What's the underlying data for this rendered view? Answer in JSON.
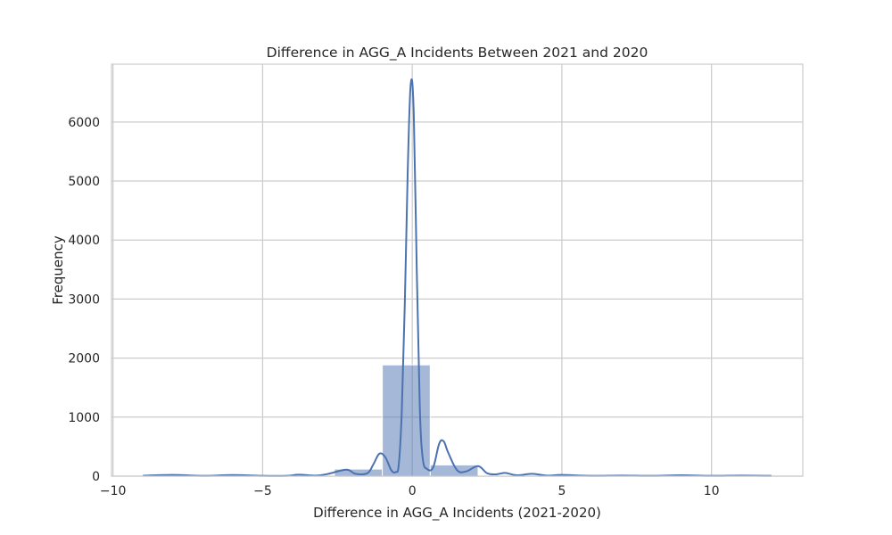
{
  "chart_data": {
    "type": "bar",
    "title": "Difference in AGG_A Incidents Between 2021 and 2020",
    "xlabel": "Difference in AGG_A Incidents (2021-2020)",
    "ylabel": "Frequency",
    "xlim": [
      -10.05,
      13.05
    ],
    "ylim": [
      0,
      6980
    ],
    "x_ticks": [
      -10,
      -5,
      0,
      5,
      10
    ],
    "x_tick_labels": [
      "−10",
      "−5",
      "0",
      "5",
      "10"
    ],
    "y_ticks": [
      0,
      1000,
      2000,
      3000,
      4000,
      5000,
      6000
    ],
    "y_tick_labels": [
      "0",
      "1000",
      "2000",
      "3000",
      "4000",
      "5000",
      "6000"
    ],
    "grid": true,
    "colors": {
      "bar_fill": "#4c72b0",
      "bar_opacity": 0.5,
      "kde_line": "#4c72b0",
      "grid": "#cccccc",
      "spine": "#cccccc",
      "text": "#262626"
    },
    "histogram": {
      "bin_edges": [
        -9,
        -7.4,
        -5.8,
        -4.2,
        -2.6,
        -1,
        0.6,
        2.2,
        3.8,
        5.4,
        7,
        8.6,
        10.2,
        11.8
      ],
      "values": [
        15,
        10,
        7,
        8,
        120,
        1885,
        190,
        10,
        7,
        6,
        5,
        5,
        10
      ]
    },
    "series": [
      {
        "type": "line",
        "x": [
          -9,
          -8,
          -7,
          -6,
          -5,
          -4.2,
          -3.8,
          -3.2,
          -2.8,
          -2.2,
          -1.9,
          -1.5,
          -1.3,
          -1.1,
          -0.9,
          -0.7,
          -0.55,
          -0.45,
          -0.35,
          -0.25,
          -0.15,
          -0.05,
          0.05,
          0.15,
          0.25,
          0.35,
          0.5,
          0.7,
          0.9,
          1.05,
          1.2,
          1.5,
          1.8,
          2.2,
          2.5,
          2.8,
          3.1,
          3.5,
          4.0,
          4.5,
          5.0,
          6.0,
          7.0,
          8.0,
          9.0,
          10.0,
          11.0,
          12.0
        ],
        "y": [
          8,
          20,
          5,
          18,
          5,
          5,
          25,
          10,
          40,
          110,
          40,
          50,
          200,
          380,
          320,
          100,
          70,
          200,
          1100,
          2900,
          5200,
          6650,
          6150,
          3500,
          1200,
          300,
          120,
          150,
          550,
          590,
          400,
          100,
          80,
          170,
          50,
          30,
          55,
          15,
          40,
          10,
          20,
          5,
          10,
          5,
          15,
          5,
          10,
          5
        ]
      }
    ]
  }
}
